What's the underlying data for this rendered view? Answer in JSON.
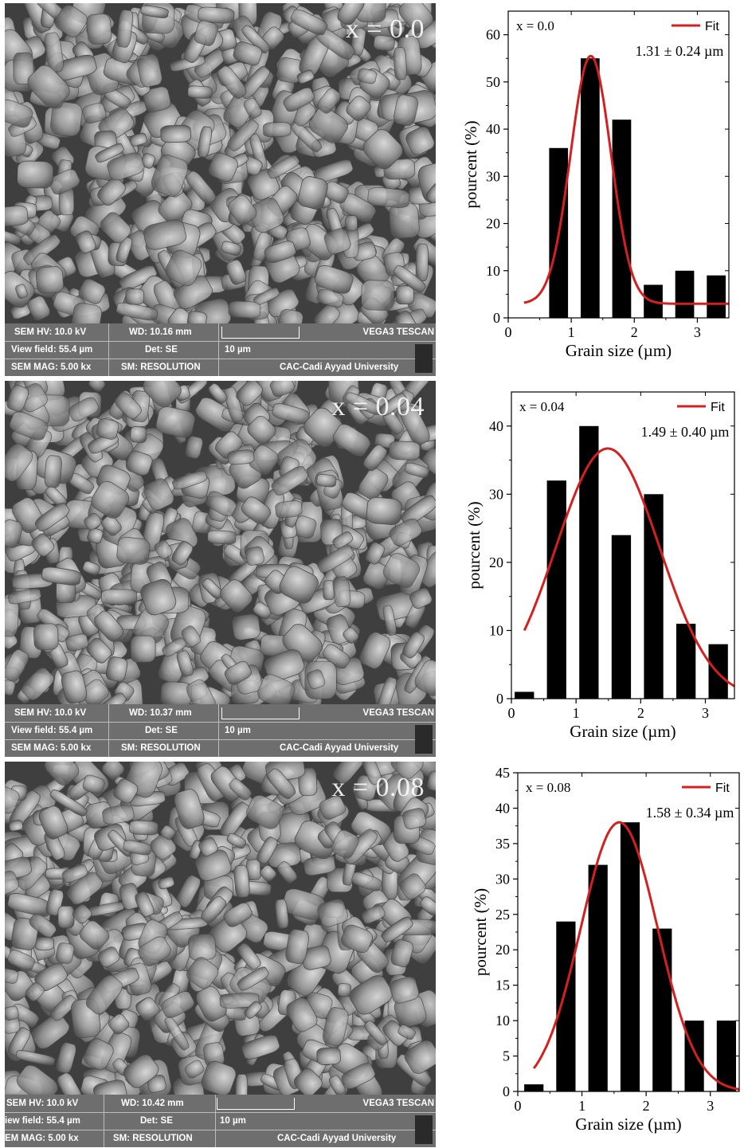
{
  "panels": [
    {
      "sem": {
        "sample_label": "x = 0.0",
        "hv": "SEM HV: 10.0 kV",
        "wd": "WD: 10.16 mm",
        "brand": "VEGA3 TESCAN",
        "view_field": "View field: 55.4 µm",
        "det": "Det: SE",
        "scale": "10 µm",
        "mag": "SEM MAG: 5.00 kx",
        "sm": "SM: RESOLUTION",
        "institution": "CAC-Cadi Ayyad University"
      }
    },
    {
      "sem": {
        "sample_label": "x = 0.04",
        "hv": "SEM HV: 10.0 kV",
        "wd": "WD: 10.37 mm",
        "brand": "VEGA3 TESCAN",
        "view_field": "View field: 55.4 µm",
        "det": "Det: SE",
        "scale": "10 µm",
        "mag": "SEM MAG: 5.00 kx",
        "sm": "SM: RESOLUTION",
        "institution": "CAC-Cadi Ayyad University"
      }
    },
    {
      "sem": {
        "sample_label": "x = 0.08",
        "hv": "SEM HV: 10.0 kV",
        "wd": "WD: 10.42 mm",
        "brand": "VEGA3 TESCAN",
        "view_field": "iew field: 55.4 µm",
        "det": "Det: SE",
        "scale": "10 µm",
        "mag": "EM MAG: 5.00 kx",
        "sm": "SM: RESOLUTION",
        "institution": "CAC-Cadi Ayyad University"
      }
    }
  ],
  "colors": {
    "bar": "#000000",
    "fit": "#d42020",
    "axis": "#000000",
    "databar": "#6e6e6e"
  },
  "chart_data": [
    {
      "type": "bar",
      "annotation_sample": "x = 0.0",
      "annotation_value": "1.31 ± 0.24 µm",
      "legend": "Fit",
      "legend_position": "top-right",
      "xlabel": "Grain size (µm)",
      "ylabel": "pourcent (%)",
      "xlim": [
        0,
        3.5
      ],
      "ylim": [
        0,
        65
      ],
      "xticks": [
        0,
        1,
        2,
        3
      ],
      "yticks": [
        0,
        10,
        20,
        30,
        40,
        50,
        60
      ],
      "bar_width": 0.3,
      "x": [
        0.8,
        1.3,
        1.8,
        2.3,
        2.8,
        3.3
      ],
      "values": [
        36,
        55,
        42,
        7,
        10,
        9
      ],
      "fit": {
        "type": "gaussian",
        "center": 1.31,
        "amplitude": 55.5,
        "sigma": 0.32,
        "baseline": 3,
        "x_range": [
          0.25,
          3.5
        ]
      }
    },
    {
      "type": "bar",
      "annotation_sample": "x = 0.04",
      "annotation_value": "1.49 ± 0.40 µm",
      "legend": "Fit",
      "legend_position": "top-right",
      "xlabel": "Grain size (µm)",
      "ylabel": "pourcent (%)",
      "xlim": [
        0,
        3.45
      ],
      "ylim": [
        0,
        45
      ],
      "xticks": [
        0,
        1,
        2,
        3
      ],
      "yticks": [
        0,
        10,
        20,
        30,
        40
      ],
      "bar_width": 0.3,
      "x": [
        0.2,
        0.7,
        1.2,
        1.7,
        2.2,
        2.7,
        3.2
      ],
      "values": [
        1,
        32,
        40,
        24,
        30,
        11,
        8
      ],
      "fit": {
        "type": "gaussian",
        "center": 1.49,
        "amplitude": 36.7,
        "sigma": 0.8,
        "baseline": 0,
        "x_range": [
          0.2,
          3.45
        ]
      }
    },
    {
      "type": "bar",
      "annotation_sample": "x = 0.08",
      "annotation_value": "1.58 ± 0.34 µm",
      "legend": "Fit",
      "legend_position": "top-right",
      "xlabel": "Grain size (µm)",
      "ylabel": "pourcent (%)",
      "xlim": [
        0,
        3.45
      ],
      "ylim": [
        0,
        45
      ],
      "xticks": [
        0,
        1,
        2,
        3
      ],
      "yticks": [
        0,
        5,
        10,
        15,
        20,
        25,
        30,
        35,
        40,
        45
      ],
      "bar_width": 0.3,
      "x": [
        0.25,
        0.75,
        1.25,
        1.75,
        2.25,
        2.75,
        3.25
      ],
      "values": [
        1,
        24,
        32,
        38,
        23,
        10,
        10
      ],
      "fit": {
        "type": "gaussian",
        "center": 1.58,
        "amplitude": 38,
        "sigma": 0.6,
        "baseline": 0,
        "x_range": [
          0.25,
          3.45
        ]
      }
    }
  ]
}
